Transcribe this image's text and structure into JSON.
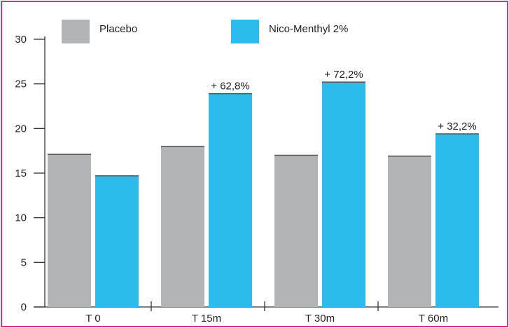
{
  "chart_data": {
    "type": "bar",
    "title": "",
    "xlabel": "",
    "ylabel": "",
    "categories": [
      "T 0",
      "T 15m",
      "T 30m",
      "T 60m"
    ],
    "ylim": [
      0,
      30
    ],
    "yticks": [
      0,
      5,
      10,
      15,
      20,
      25,
      30
    ],
    "grid": false,
    "legend": "top",
    "series": [
      {
        "name": "Placebo",
        "color": "#b3b4b6",
        "values": [
          17.1,
          18.0,
          17.0,
          16.9
        ]
      },
      {
        "name": "Nico-Menthyl 2%",
        "color": "#2bbcec",
        "values": [
          14.7,
          23.9,
          25.2,
          19.4
        ]
      }
    ],
    "annotations": [
      {
        "category": "T 15m",
        "series": "Nico-Menthyl 2%",
        "text": "+ 62,8%"
      },
      {
        "category": "T 30m",
        "series": "Nico-Menthyl 2%",
        "text": "+ 72,2%"
      },
      {
        "category": "T 60m",
        "series": "Nico-Menthyl 2%",
        "text": "+ 32,2%"
      }
    ]
  },
  "colors": {
    "border": "#d63384",
    "axis": "#333333"
  }
}
